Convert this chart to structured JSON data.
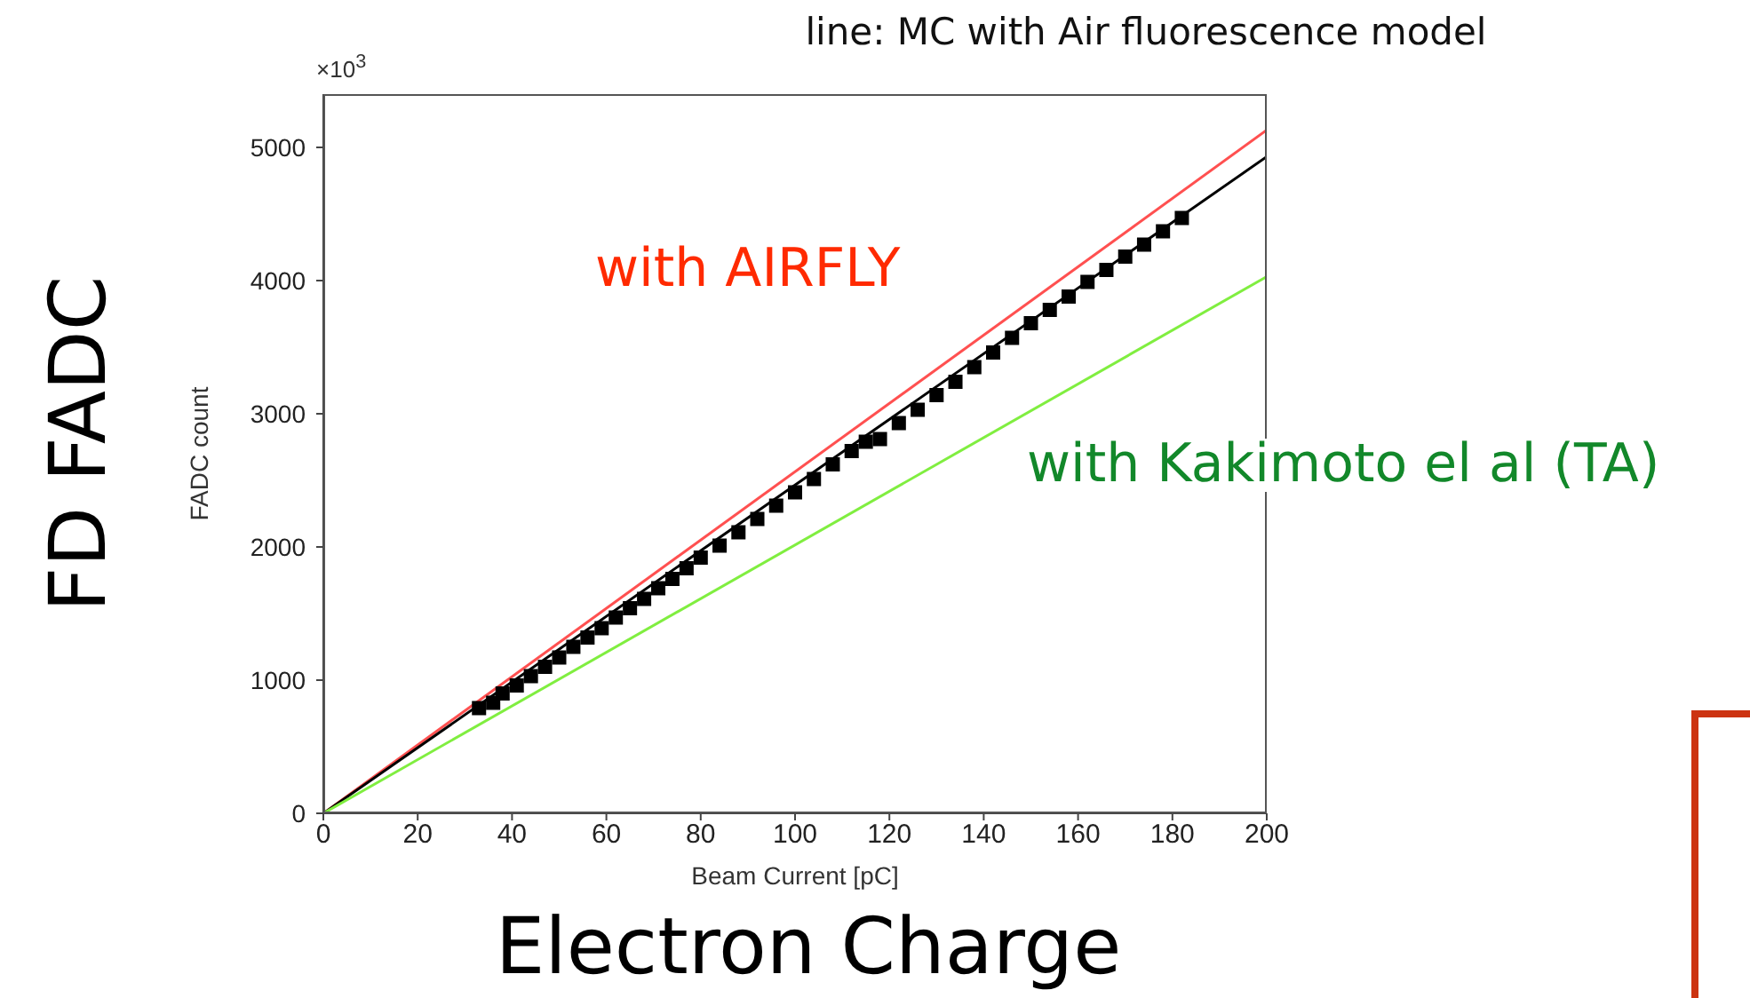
{
  "chart_data": {
    "type": "line",
    "title": "line: MC with Air fluorescence model",
    "xlabel": "Beam Current [pC]",
    "ylabel": "FADC count",
    "annotations": [
      "×10$^{3}$",
      "with AIRFLY",
      "with Kakimoto el al (TA)",
      "FD FADC",
      "Electron Charge"
    ],
    "xlim": [
      0,
      200
    ],
    "ylim": [
      0,
      5400
    ],
    "xticks": [
      0,
      20,
      40,
      60,
      80,
      100,
      120,
      140,
      160,
      180,
      200
    ],
    "yticks": [
      0,
      1000,
      2000,
      3000,
      4000,
      5000
    ],
    "grid": false,
    "legend": false,
    "series": [
      {
        "color": "#ff5050",
        "marker": "none",
        "x": [
          0,
          200
        ],
        "values": [
          0,
          5130
        ]
      },
      {
        "color": "#000000",
        "marker": "none",
        "x": [
          0,
          200
        ],
        "values": [
          0,
          4930
        ]
      },
      {
        "color": "#80ee40",
        "marker": "none",
        "x": [
          0,
          200
        ],
        "values": [
          0,
          4030
        ]
      },
      {
        "type": "scatter",
        "color": "#000000",
        "marker": "square",
        "x": [
          33,
          36,
          38,
          41,
          44,
          47,
          50,
          53,
          56,
          59,
          62,
          65,
          68,
          71,
          74,
          77,
          80,
          84,
          88,
          92,
          96,
          100,
          104,
          108,
          112,
          115,
          118,
          122,
          126,
          130,
          134,
          138,
          142,
          146,
          150,
          154,
          158,
          162,
          166,
          170,
          174,
          178,
          182
        ],
        "values": [
          790,
          830,
          900,
          960,
          1030,
          1100,
          1170,
          1250,
          1320,
          1390,
          1470,
          1540,
          1610,
          1690,
          1760,
          1840,
          1920,
          2010,
          2110,
          2210,
          2310,
          2410,
          2510,
          2620,
          2720,
          2790,
          2810,
          2930,
          3030,
          3140,
          3240,
          3350,
          3460,
          3570,
          3680,
          3780,
          3880,
          3990,
          4080,
          4180,
          4270,
          4370,
          4470
        ]
      }
    ]
  }
}
